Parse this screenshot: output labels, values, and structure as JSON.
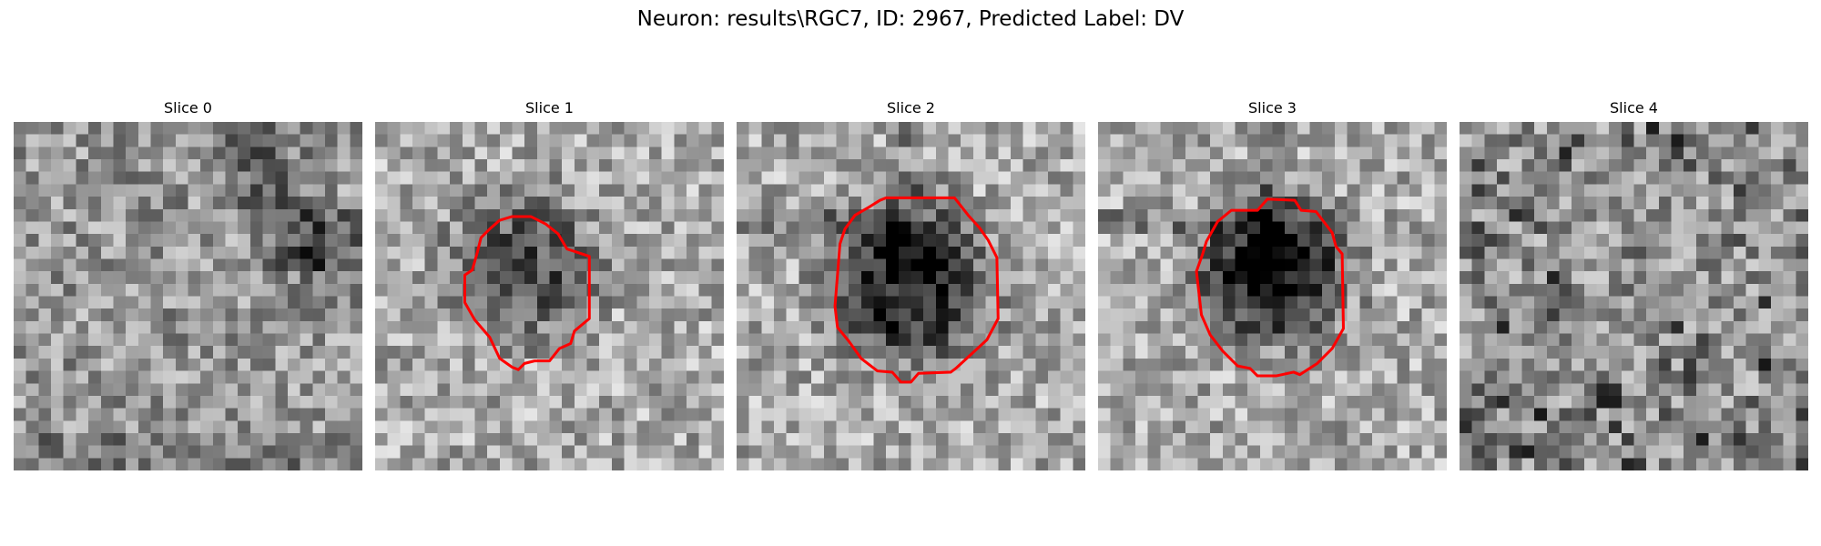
{
  "figure": {
    "title": "Neuron: results\\RGC7, ID: 2967, Predicted Label: DV"
  },
  "colors": {
    "contour": "#ff0000",
    "colormap": "gray"
  },
  "slices": [
    {
      "title": "Slice 0",
      "has_contour": false,
      "seed": 11,
      "texture": "diag"
    },
    {
      "title": "Slice 1",
      "has_contour": true,
      "seed": 23,
      "texture": "blob_light"
    },
    {
      "title": "Slice 2",
      "has_contour": true,
      "seed": 37,
      "texture": "blob_dark"
    },
    {
      "title": "Slice 3",
      "has_contour": true,
      "seed": 53,
      "texture": "blob_darkest"
    },
    {
      "title": "Slice 4",
      "has_contour": false,
      "seed": 71,
      "texture": "dots"
    }
  ]
}
